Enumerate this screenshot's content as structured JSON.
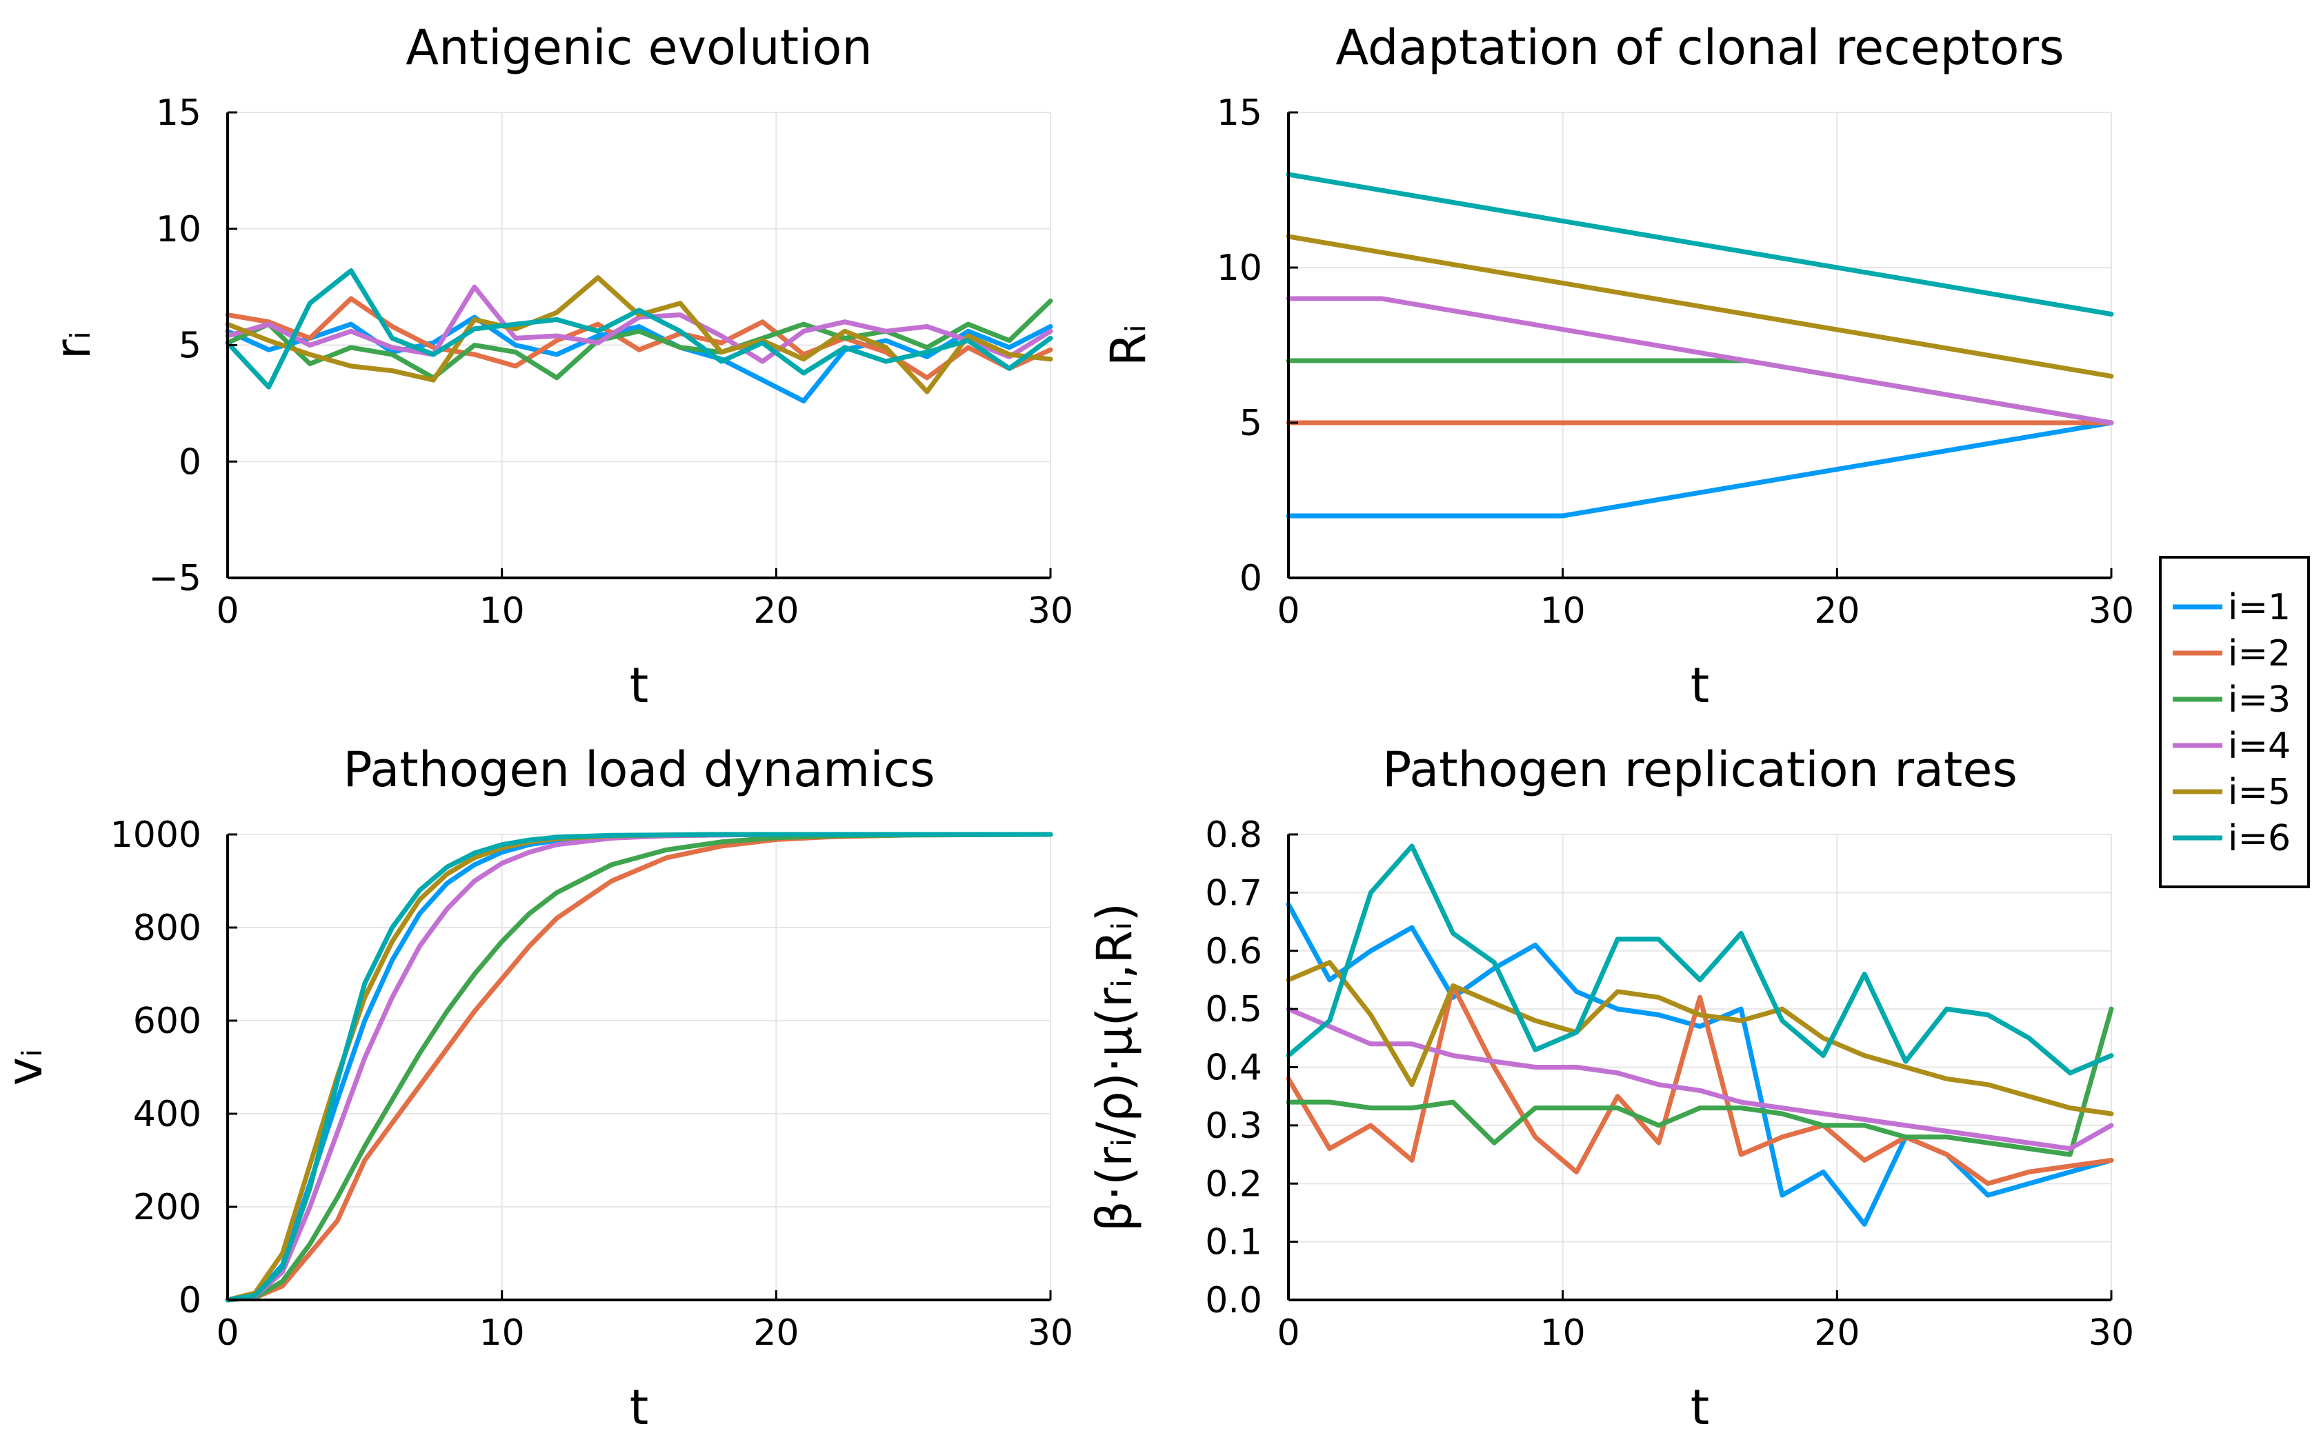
{
  "colors": {
    "series": [
      "#009af9",
      "#e26f46",
      "#3ea44e",
      "#c271d2",
      "#ac8d18",
      "#00a9ac"
    ],
    "grid": "#e6e6e6",
    "axis": "#000000"
  },
  "legend": {
    "entries": [
      "i=1",
      "i=2",
      "i=3",
      "i=4",
      "i=5",
      "i=6"
    ],
    "placement": "outer-right"
  },
  "chart_data": [
    {
      "id": "p1",
      "type": "line",
      "title": "Antigenic evolution",
      "xlabel": "t",
      "ylabel": "rᵢ",
      "xlim": [
        0,
        30
      ],
      "ylim": [
        -5,
        15
      ],
      "xticks": [
        0,
        10,
        20,
        30
      ],
      "yticks": [
        -5,
        0,
        5,
        10,
        15
      ],
      "xtick_labels": [
        "0",
        "10",
        "20",
        "30"
      ],
      "ytick_labels": [
        "−5",
        "0",
        "5",
        "10",
        "15"
      ],
      "grid": true,
      "x": [
        0,
        1.5,
        3,
        4.5,
        6,
        7.5,
        9,
        10.5,
        12,
        13.5,
        15,
        16.5,
        18,
        19.5,
        21,
        22.5,
        24,
        25.5,
        27,
        28.5,
        30
      ],
      "series": [
        {
          "name": "i=1",
          "values": [
            5.6,
            4.8,
            5.3,
            5.9,
            4.7,
            5.1,
            6.2,
            5.0,
            4.6,
            5.4,
            5.8,
            4.9,
            4.4,
            3.5,
            2.6,
            4.8,
            5.2,
            4.5,
            5.6,
            4.9,
            5.8
          ]
        },
        {
          "name": "i=2",
          "values": [
            6.3,
            6.0,
            5.3,
            7.0,
            5.8,
            4.9,
            4.6,
            4.1,
            5.2,
            5.9,
            4.8,
            5.5,
            5.1,
            6.0,
            4.6,
            5.3,
            4.7,
            3.6,
            4.9,
            4.0,
            4.8
          ]
        },
        {
          "name": "i=3",
          "values": [
            5.1,
            5.9,
            4.2,
            4.9,
            4.6,
            3.6,
            5.0,
            4.7,
            3.6,
            5.2,
            5.6,
            4.9,
            4.7,
            5.3,
            5.9,
            5.3,
            5.6,
            4.9,
            5.9,
            5.2,
            6.9
          ]
        },
        {
          "name": "i=4",
          "values": [
            5.4,
            5.9,
            5.0,
            5.6,
            4.9,
            4.6,
            7.5,
            5.3,
            5.4,
            5.1,
            6.2,
            6.3,
            5.4,
            4.3,
            5.6,
            6.0,
            5.6,
            5.8,
            5.2,
            4.5,
            5.6
          ]
        },
        {
          "name": "i=5",
          "values": [
            5.9,
            5.2,
            4.6,
            4.1,
            3.9,
            3.5,
            6.1,
            5.7,
            6.4,
            7.9,
            6.3,
            6.8,
            4.7,
            5.2,
            4.4,
            5.6,
            4.9,
            3.0,
            5.4,
            4.6,
            4.4
          ]
        },
        {
          "name": "i=6",
          "values": [
            5.1,
            3.2,
            6.8,
            8.2,
            5.3,
            4.6,
            5.7,
            5.9,
            6.1,
            5.6,
            6.5,
            5.6,
            4.3,
            5.1,
            3.8,
            4.9,
            4.3,
            4.7,
            5.2,
            4.0,
            5.3
          ]
        }
      ]
    },
    {
      "id": "p2",
      "type": "line",
      "title": "Adaptation of clonal receptors",
      "xlabel": "t",
      "ylabel": "Rᵢ",
      "xlim": [
        0,
        30
      ],
      "ylim": [
        0,
        15
      ],
      "xticks": [
        0,
        10,
        20,
        30
      ],
      "yticks": [
        0,
        5,
        10,
        15
      ],
      "xtick_labels": [
        "0",
        "10",
        "20",
        "30"
      ],
      "ytick_labels": [
        "0",
        "5",
        "10",
        "15"
      ],
      "grid": true,
      "series": [
        {
          "name": "i=1",
          "x": [
            0,
            10,
            30
          ],
          "values": [
            2,
            2,
            5
          ]
        },
        {
          "name": "i=2",
          "x": [
            0,
            30
          ],
          "values": [
            5,
            5
          ]
        },
        {
          "name": "i=3",
          "x": [
            0,
            16.7,
            30
          ],
          "values": [
            7,
            7,
            5
          ]
        },
        {
          "name": "i=4",
          "x": [
            0,
            3.4,
            30
          ],
          "values": [
            9,
            9,
            5
          ]
        },
        {
          "name": "i=5",
          "x": [
            0,
            30
          ],
          "values": [
            11,
            6.5
          ]
        },
        {
          "name": "i=6",
          "x": [
            0,
            30
          ],
          "values": [
            13,
            8.5
          ]
        }
      ]
    },
    {
      "id": "p3",
      "type": "line",
      "title": "Pathogen load dynamics",
      "xlabel": "t",
      "ylabel": "vᵢ",
      "xlim": [
        0,
        30
      ],
      "ylim": [
        0,
        1000
      ],
      "xticks": [
        0,
        10,
        20,
        30
      ],
      "yticks": [
        0,
        200,
        400,
        600,
        800,
        1000
      ],
      "xtick_labels": [
        "0",
        "10",
        "20",
        "30"
      ],
      "ytick_labels": [
        "0",
        "200",
        "400",
        "600",
        "800",
        "1000"
      ],
      "grid": true,
      "x": [
        0,
        1,
        2,
        3,
        4,
        5,
        6,
        7,
        8,
        9,
        10,
        11,
        12,
        14,
        16,
        18,
        20,
        22,
        25,
        30
      ],
      "series": [
        {
          "name": "i=1",
          "values": [
            0,
            10,
            75,
            250,
            430,
            600,
            730,
            830,
            895,
            935,
            962,
            978,
            987,
            994,
            997,
            999,
            1000,
            1000,
            1000,
            1000
          ]
        },
        {
          "name": "i=2",
          "values": [
            0,
            5,
            30,
            100,
            170,
            300,
            380,
            460,
            540,
            620,
            690,
            760,
            820,
            900,
            950,
            975,
            989,
            995,
            999,
            1000
          ]
        },
        {
          "name": "i=3",
          "values": [
            0,
            5,
            40,
            120,
            220,
            330,
            430,
            530,
            620,
            700,
            770,
            830,
            875,
            935,
            967,
            984,
            993,
            997,
            999,
            1000
          ]
        },
        {
          "name": "i=4",
          "values": [
            0,
            8,
            60,
            200,
            360,
            520,
            650,
            760,
            840,
            900,
            938,
            962,
            978,
            992,
            997,
            999,
            1000,
            1000,
            1000,
            1000
          ]
        },
        {
          "name": "i=5",
          "values": [
            0,
            15,
            100,
            290,
            480,
            650,
            770,
            860,
            915,
            950,
            971,
            984,
            991,
            997,
            999,
            1000,
            1000,
            1000,
            1000,
            1000
          ]
        },
        {
          "name": "i=6",
          "values": [
            0,
            10,
            70,
            240,
            470,
            680,
            800,
            880,
            930,
            960,
            978,
            988,
            994,
            998,
            999,
            1000,
            1000,
            1000,
            1000,
            1000
          ]
        }
      ]
    },
    {
      "id": "p4",
      "type": "line",
      "title": "Pathogen replication rates",
      "xlabel": "t",
      "ylabel": "β·(rᵢ/ρ)·μ(rᵢ,Rᵢ)",
      "xlim": [
        0,
        30
      ],
      "ylim": [
        0,
        0.8
      ],
      "xticks": [
        0,
        10,
        20,
        30
      ],
      "yticks": [
        0,
        0.1,
        0.2,
        0.3,
        0.4,
        0.5,
        0.6,
        0.7,
        0.8
      ],
      "xtick_labels": [
        "0",
        "10",
        "20",
        "30"
      ],
      "ytick_labels": [
        "0.0",
        "0.1",
        "0.2",
        "0.3",
        "0.4",
        "0.5",
        "0.6",
        "0.7",
        "0.8"
      ],
      "grid": true,
      "x": [
        0,
        1.5,
        3,
        4.5,
        6,
        7.5,
        9,
        10.5,
        12,
        13.5,
        15,
        16.5,
        18,
        19.5,
        21,
        22.5,
        24,
        25.5,
        27,
        28.5,
        30
      ],
      "series": [
        {
          "name": "i=1",
          "values": [
            0.68,
            0.55,
            0.6,
            0.64,
            0.52,
            0.57,
            0.61,
            0.53,
            0.5,
            0.49,
            0.47,
            0.5,
            0.18,
            0.22,
            0.13,
            0.28,
            0.25,
            0.18,
            0.2,
            0.22,
            0.24
          ]
        },
        {
          "name": "i=2",
          "values": [
            0.38,
            0.26,
            0.3,
            0.24,
            0.54,
            0.4,
            0.28,
            0.22,
            0.35,
            0.27,
            0.52,
            0.25,
            0.28,
            0.3,
            0.24,
            0.28,
            0.25,
            0.2,
            0.22,
            0.23,
            0.24
          ]
        },
        {
          "name": "i=3",
          "values": [
            0.34,
            0.34,
            0.33,
            0.33,
            0.34,
            0.27,
            0.33,
            0.33,
            0.33,
            0.3,
            0.33,
            0.33,
            0.32,
            0.3,
            0.3,
            0.28,
            0.28,
            0.27,
            0.26,
            0.25,
            0.5
          ]
        },
        {
          "name": "i=4",
          "values": [
            0.5,
            0.47,
            0.44,
            0.44,
            0.42,
            0.41,
            0.4,
            0.4,
            0.39,
            0.37,
            0.36,
            0.34,
            0.33,
            0.32,
            0.31,
            0.3,
            0.29,
            0.28,
            0.27,
            0.26,
            0.3
          ]
        },
        {
          "name": "i=5",
          "values": [
            0.55,
            0.58,
            0.49,
            0.37,
            0.54,
            0.51,
            0.48,
            0.46,
            0.53,
            0.52,
            0.49,
            0.48,
            0.5,
            0.45,
            0.42,
            0.4,
            0.38,
            0.37,
            0.35,
            0.33,
            0.32
          ]
        },
        {
          "name": "i=6",
          "values": [
            0.42,
            0.48,
            0.7,
            0.78,
            0.63,
            0.58,
            0.43,
            0.46,
            0.62,
            0.62,
            0.55,
            0.63,
            0.48,
            0.42,
            0.56,
            0.41,
            0.5,
            0.49,
            0.45,
            0.39,
            0.42
          ]
        }
      ]
    }
  ]
}
